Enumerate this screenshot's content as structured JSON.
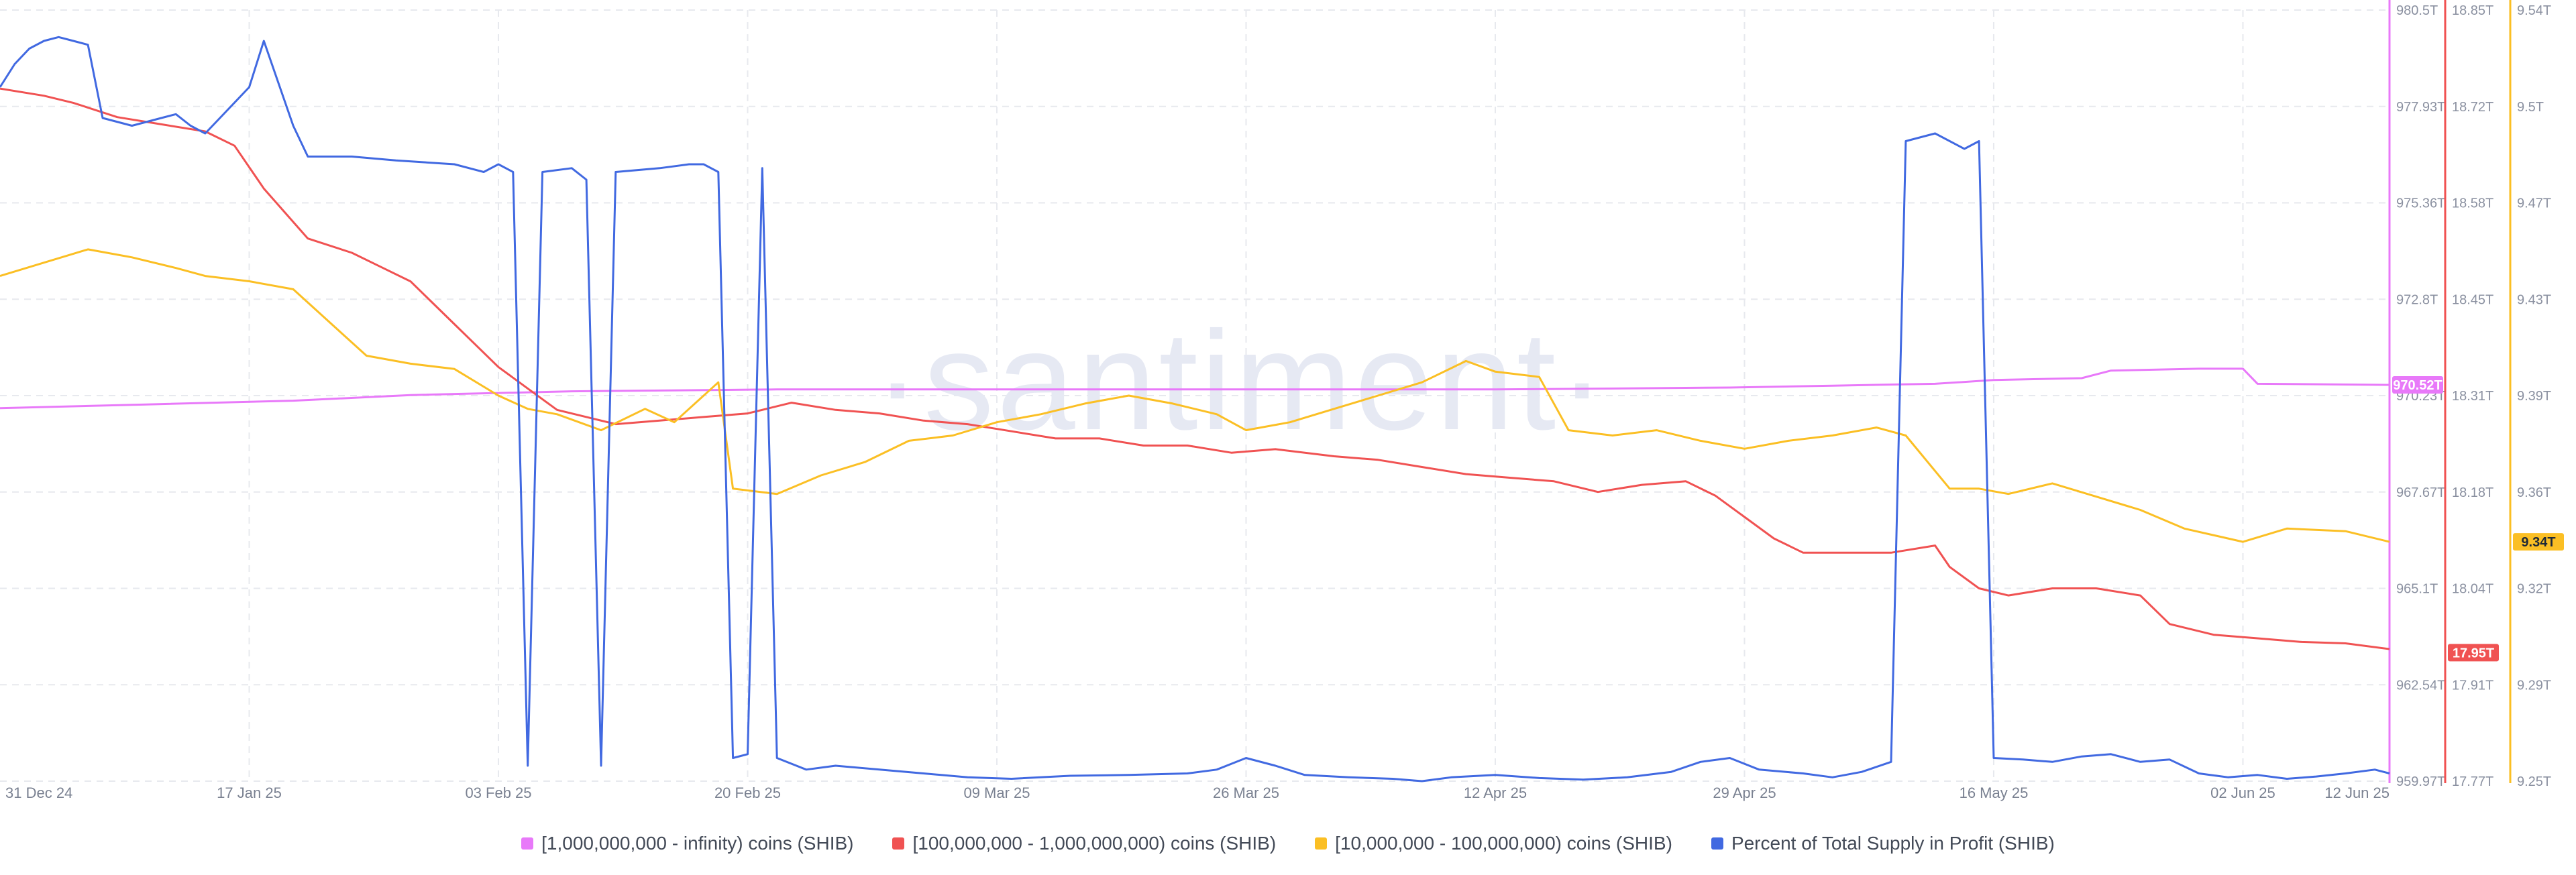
{
  "chart_data": {
    "type": "line",
    "watermark": "·santiment·",
    "x_ticks": [
      "31 Dec 24",
      "17 Jan 25",
      "03 Feb 25",
      "20 Feb 25",
      "09 Mar 25",
      "26 Mar 25",
      "12 Apr 25",
      "29 Apr 25",
      "16 May 25",
      "02 Jun 25",
      "12 Jun 25"
    ],
    "x_range": [
      "2024-12-31",
      "2025-06-12"
    ],
    "grid": true,
    "legend_position": "bottom-center",
    "axes": [
      {
        "id": "pink",
        "color": "#e879f9",
        "range": [
          959.97,
          980.5
        ],
        "unit": "T",
        "ticks": [
          "980.5T",
          "977.93T",
          "975.36T",
          "972.8T",
          "970.23T",
          "967.67T",
          "965.1T",
          "962.54T",
          "959.97T"
        ],
        "current_label": "970.52T",
        "current_value": 970.52
      },
      {
        "id": "red",
        "color": "#f05252",
        "range": [
          17.77,
          18.85
        ],
        "unit": "T",
        "ticks": [
          "18.85T",
          "18.72T",
          "18.58T",
          "18.45T",
          "18.31T",
          "18.18T",
          "18.04T",
          "17.91T",
          "17.77T"
        ],
        "current_label": "17.95T",
        "current_value": 17.95
      },
      {
        "id": "yellow",
        "color": "#fbbf24",
        "range": [
          9.25,
          9.54
        ],
        "unit": "T",
        "ticks": [
          "9.54T",
          "9.5T",
          "9.47T",
          "9.43T",
          "9.39T",
          "9.36T",
          "9.32T",
          "9.29T",
          "9.25T"
        ],
        "current_label": "9.34T",
        "current_value": 9.34
      },
      {
        "id": "blue",
        "color": "#4169e1",
        "range": [
          0,
          100
        ],
        "hidden": true
      }
    ],
    "series": [
      {
        "name": "[1,000,000,000 - infinity) coins (SHIB)",
        "color": "#e879f9",
        "axis": "pink",
        "points": [
          [
            "2024-12-31",
            969.9
          ],
          [
            "2025-01-10",
            970.0
          ],
          [
            "2025-01-20",
            970.1
          ],
          [
            "2025-01-28",
            970.25
          ],
          [
            "2025-02-08",
            970.35
          ],
          [
            "2025-02-22",
            970.4
          ],
          [
            "2025-03-10",
            970.4
          ],
          [
            "2025-03-28",
            970.4
          ],
          [
            "2025-04-12",
            970.4
          ],
          [
            "2025-04-28",
            970.45
          ],
          [
            "2025-05-05",
            970.5
          ],
          [
            "2025-05-12",
            970.55
          ],
          [
            "2025-05-16",
            970.65
          ],
          [
            "2025-05-22",
            970.7
          ],
          [
            "2025-05-24",
            970.9
          ],
          [
            "2025-05-30",
            970.95
          ],
          [
            "2025-06-02",
            970.95
          ],
          [
            "2025-06-03",
            970.55
          ],
          [
            "2025-06-12",
            970.52
          ]
        ]
      },
      {
        "name": "[100,000,000 - 1,000,000,000) coins (SHIB)",
        "color": "#f05252",
        "axis": "red",
        "points": [
          [
            "2024-12-31",
            18.74
          ],
          [
            "2025-01-03",
            18.73
          ],
          [
            "2025-01-05",
            18.72
          ],
          [
            "2025-01-08",
            18.7
          ],
          [
            "2025-01-11",
            18.69
          ],
          [
            "2025-01-14",
            18.68
          ],
          [
            "2025-01-16",
            18.66
          ],
          [
            "2025-01-18",
            18.6
          ],
          [
            "2025-01-21",
            18.53
          ],
          [
            "2025-01-24",
            18.51
          ],
          [
            "2025-01-26",
            18.49
          ],
          [
            "2025-01-28",
            18.47
          ],
          [
            "2025-01-31",
            18.41
          ],
          [
            "2025-02-03",
            18.35
          ],
          [
            "2025-02-05",
            18.32
          ],
          [
            "2025-02-07",
            18.29
          ],
          [
            "2025-02-09",
            18.28
          ],
          [
            "2025-02-11",
            18.27
          ],
          [
            "2025-02-14",
            18.275
          ],
          [
            "2025-02-17",
            18.28
          ],
          [
            "2025-02-20",
            18.285
          ],
          [
            "2025-02-23",
            18.3
          ],
          [
            "2025-02-26",
            18.29
          ],
          [
            "2025-03-01",
            18.285
          ],
          [
            "2025-03-04",
            18.275
          ],
          [
            "2025-03-07",
            18.27
          ],
          [
            "2025-03-10",
            18.26
          ],
          [
            "2025-03-13",
            18.25
          ],
          [
            "2025-03-16",
            18.25
          ],
          [
            "2025-03-19",
            18.24
          ],
          [
            "2025-03-22",
            18.24
          ],
          [
            "2025-03-25",
            18.23
          ],
          [
            "2025-03-28",
            18.235
          ],
          [
            "2025-04-01",
            18.225
          ],
          [
            "2025-04-04",
            18.22
          ],
          [
            "2025-04-07",
            18.21
          ],
          [
            "2025-04-10",
            18.2
          ],
          [
            "2025-04-13",
            18.195
          ],
          [
            "2025-04-16",
            18.19
          ],
          [
            "2025-04-19",
            18.175
          ],
          [
            "2025-04-22",
            18.185
          ],
          [
            "2025-04-25",
            18.19
          ],
          [
            "2025-04-27",
            18.17
          ],
          [
            "2025-04-29",
            18.14
          ],
          [
            "2025-05-01",
            18.11
          ],
          [
            "2025-05-03",
            18.09
          ],
          [
            "2025-05-06",
            18.09
          ],
          [
            "2025-05-09",
            18.09
          ],
          [
            "2025-05-12",
            18.1
          ],
          [
            "2025-05-13",
            18.07
          ],
          [
            "2025-05-15",
            18.04
          ],
          [
            "2025-05-17",
            18.03
          ],
          [
            "2025-05-20",
            18.04
          ],
          [
            "2025-05-23",
            18.04
          ],
          [
            "2025-05-26",
            18.03
          ],
          [
            "2025-05-28",
            17.99
          ],
          [
            "2025-05-31",
            17.975
          ],
          [
            "2025-06-03",
            17.97
          ],
          [
            "2025-06-06",
            17.965
          ],
          [
            "2025-06-09",
            17.963
          ],
          [
            "2025-06-12",
            17.955
          ]
        ]
      },
      {
        "name": "[10,000,000 - 100,000,000) coins (SHIB)",
        "color": "#fbbf24",
        "axis": "yellow",
        "points": [
          [
            "2024-12-31",
            9.44
          ],
          [
            "2025-01-03",
            9.445
          ],
          [
            "2025-01-06",
            9.45
          ],
          [
            "2025-01-09",
            9.447
          ],
          [
            "2025-01-12",
            9.443
          ],
          [
            "2025-01-14",
            9.44
          ],
          [
            "2025-01-17",
            9.438
          ],
          [
            "2025-01-20",
            9.435
          ],
          [
            "2025-01-23",
            9.42
          ],
          [
            "2025-01-25",
            9.41
          ],
          [
            "2025-01-28",
            9.407
          ],
          [
            "2025-01-31",
            9.405
          ],
          [
            "2025-02-03",
            9.395
          ],
          [
            "2025-02-05",
            9.39
          ],
          [
            "2025-02-07",
            9.388
          ],
          [
            "2025-02-10",
            9.382
          ],
          [
            "2025-02-13",
            9.39
          ],
          [
            "2025-02-15",
            9.385
          ],
          [
            "2025-02-18",
            9.4
          ],
          [
            "2025-02-19",
            9.36
          ],
          [
            "2025-02-22",
            9.358
          ],
          [
            "2025-02-25",
            9.365
          ],
          [
            "2025-02-28",
            9.37
          ],
          [
            "2025-03-03",
            9.378
          ],
          [
            "2025-03-06",
            9.38
          ],
          [
            "2025-03-09",
            9.385
          ],
          [
            "2025-03-12",
            9.388
          ],
          [
            "2025-03-15",
            9.392
          ],
          [
            "2025-03-18",
            9.395
          ],
          [
            "2025-03-21",
            9.392
          ],
          [
            "2025-03-24",
            9.388
          ],
          [
            "2025-03-26",
            9.382
          ],
          [
            "2025-03-29",
            9.385
          ],
          [
            "2025-04-01",
            9.39
          ],
          [
            "2025-04-04",
            9.395
          ],
          [
            "2025-04-07",
            9.4
          ],
          [
            "2025-04-10",
            9.408
          ],
          [
            "2025-04-12",
            9.404
          ],
          [
            "2025-04-15",
            9.402
          ],
          [
            "2025-04-17",
            9.382
          ],
          [
            "2025-04-20",
            9.38
          ],
          [
            "2025-04-23",
            9.382
          ],
          [
            "2025-04-26",
            9.378
          ],
          [
            "2025-04-29",
            9.375
          ],
          [
            "2025-05-02",
            9.378
          ],
          [
            "2025-05-05",
            9.38
          ],
          [
            "2025-05-08",
            9.383
          ],
          [
            "2025-05-10",
            9.38
          ],
          [
            "2025-05-13",
            9.36
          ],
          [
            "2025-05-15",
            9.36
          ],
          [
            "2025-05-17",
            9.358
          ],
          [
            "2025-05-20",
            9.362
          ],
          [
            "2025-05-23",
            9.357
          ],
          [
            "2025-05-26",
            9.352
          ],
          [
            "2025-05-29",
            9.345
          ],
          [
            "2025-06-02",
            9.34
          ],
          [
            "2025-06-05",
            9.345
          ],
          [
            "2025-06-09",
            9.344
          ],
          [
            "2025-06-12",
            9.34
          ]
        ]
      },
      {
        "name": "Percent of Total Supply in Profit (SHIB)",
        "color": "#4169e1",
        "axis": "blue",
        "points": [
          [
            "2024-12-31",
            90
          ],
          [
            "2025-01-01",
            93
          ],
          [
            "2025-01-02",
            95
          ],
          [
            "2025-01-03",
            96
          ],
          [
            "2025-01-04",
            96.5
          ],
          [
            "2025-01-05",
            96
          ],
          [
            "2025-01-06",
            95.5
          ],
          [
            "2025-01-07",
            86
          ],
          [
            "2025-01-09",
            85
          ],
          [
            "2025-01-11",
            86
          ],
          [
            "2025-01-12",
            86.5
          ],
          [
            "2025-01-13",
            85
          ],
          [
            "2025-01-14",
            84
          ],
          [
            "2025-01-15",
            86
          ],
          [
            "2025-01-17",
            90
          ],
          [
            "2025-01-18",
            96
          ],
          [
            "2025-01-20",
            85
          ],
          [
            "2025-01-21",
            81
          ],
          [
            "2025-01-24",
            81
          ],
          [
            "2025-01-27",
            80.5
          ],
          [
            "2025-01-31",
            80
          ],
          [
            "2025-02-02",
            79
          ],
          [
            "2025-02-03",
            80
          ],
          [
            "2025-02-04",
            79
          ],
          [
            "2025-02-05",
            2
          ],
          [
            "2025-02-06",
            79
          ],
          [
            "2025-02-08",
            79.5
          ],
          [
            "2025-02-09",
            78
          ],
          [
            "2025-02-10",
            2
          ],
          [
            "2025-02-11",
            79
          ],
          [
            "2025-02-14",
            79.5
          ],
          [
            "2025-02-16",
            80
          ],
          [
            "2025-02-17",
            80
          ],
          [
            "2025-02-18",
            79
          ],
          [
            "2025-02-19",
            3
          ],
          [
            "2025-02-20",
            3.5
          ],
          [
            "2025-02-21",
            79.5
          ],
          [
            "2025-02-22",
            3
          ],
          [
            "2025-02-24",
            1.5
          ],
          [
            "2025-02-26",
            2
          ],
          [
            "2025-03-01",
            1.5
          ],
          [
            "2025-03-04",
            1
          ],
          [
            "2025-03-07",
            0.5
          ],
          [
            "2025-03-10",
            0.3
          ],
          [
            "2025-03-14",
            0.7
          ],
          [
            "2025-03-18",
            0.8
          ],
          [
            "2025-03-22",
            1
          ],
          [
            "2025-03-24",
            1.5
          ],
          [
            "2025-03-26",
            3
          ],
          [
            "2025-03-28",
            2
          ],
          [
            "2025-03-30",
            0.8
          ],
          [
            "2025-04-02",
            0.5
          ],
          [
            "2025-04-05",
            0.3
          ],
          [
            "2025-04-07",
            0
          ],
          [
            "2025-04-09",
            0.5
          ],
          [
            "2025-04-12",
            0.8
          ],
          [
            "2025-04-15",
            0.4
          ],
          [
            "2025-04-18",
            0.2
          ],
          [
            "2025-04-21",
            0.5
          ],
          [
            "2025-04-24",
            1.2
          ],
          [
            "2025-04-26",
            2.5
          ],
          [
            "2025-04-28",
            3
          ],
          [
            "2025-04-30",
            1.5
          ],
          [
            "2025-05-03",
            1
          ],
          [
            "2025-05-05",
            0.5
          ],
          [
            "2025-05-07",
            1.2
          ],
          [
            "2025-05-09",
            2.5
          ],
          [
            "2025-05-10",
            83
          ],
          [
            "2025-05-12",
            84
          ],
          [
            "2025-05-14",
            82
          ],
          [
            "2025-05-15",
            83
          ],
          [
            "2025-05-16",
            3
          ],
          [
            "2025-05-18",
            2.8
          ],
          [
            "2025-05-20",
            2.5
          ],
          [
            "2025-05-22",
            3.2
          ],
          [
            "2025-05-24",
            3.5
          ],
          [
            "2025-05-26",
            2.5
          ],
          [
            "2025-05-28",
            2.8
          ],
          [
            "2025-05-30",
            1
          ],
          [
            "2025-06-01",
            0.5
          ],
          [
            "2025-06-03",
            0.8
          ],
          [
            "2025-06-05",
            0.3
          ],
          [
            "2025-06-07",
            0.6
          ],
          [
            "2025-06-09",
            1
          ],
          [
            "2025-06-11",
            1.5
          ],
          [
            "2025-06-12",
            1
          ]
        ]
      }
    ]
  }
}
